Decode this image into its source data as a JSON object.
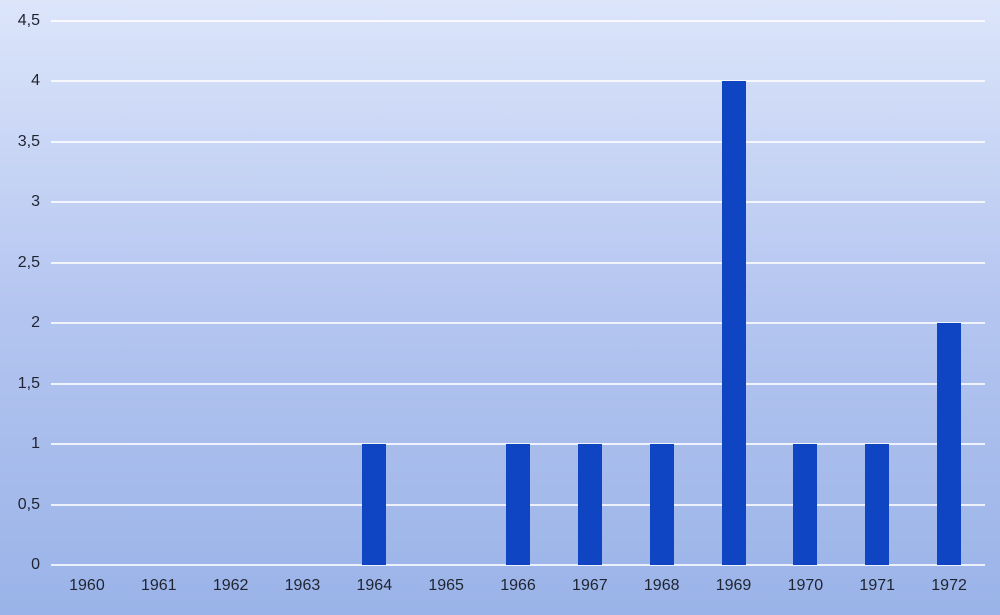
{
  "chart_data": {
    "type": "bar",
    "title": "",
    "xlabel": "",
    "ylabel": "",
    "categories": [
      "1960",
      "1961",
      "1962",
      "1963",
      "1964",
      "1965",
      "1966",
      "1967",
      "1968",
      "1969",
      "1970",
      "1971",
      "1972"
    ],
    "values": [
      0,
      0,
      0,
      0,
      1,
      0,
      1,
      1,
      1,
      4,
      1,
      1,
      2
    ],
    "series_name": "",
    "ylim": [
      0,
      4.5
    ],
    "y_tick_values": [
      0,
      0.5,
      1,
      1.5,
      2,
      2.5,
      3,
      3.5,
      4,
      4.5
    ],
    "y_tick_labels": [
      "0",
      "0,5",
      "1",
      "1,5",
      "2",
      "2,5",
      "3",
      "3,5",
      "4",
      "4,5"
    ],
    "decimal_separator": ",",
    "grid": "horizontal",
    "legend": "none",
    "colors": {
      "bar": "#0f45c2",
      "background_top": "#dce5fa",
      "background_middle": "#b4c5f0",
      "background_bottom": "#9ab3e8",
      "gridline": "#ffffff",
      "tick_text": "#1f2430"
    }
  }
}
